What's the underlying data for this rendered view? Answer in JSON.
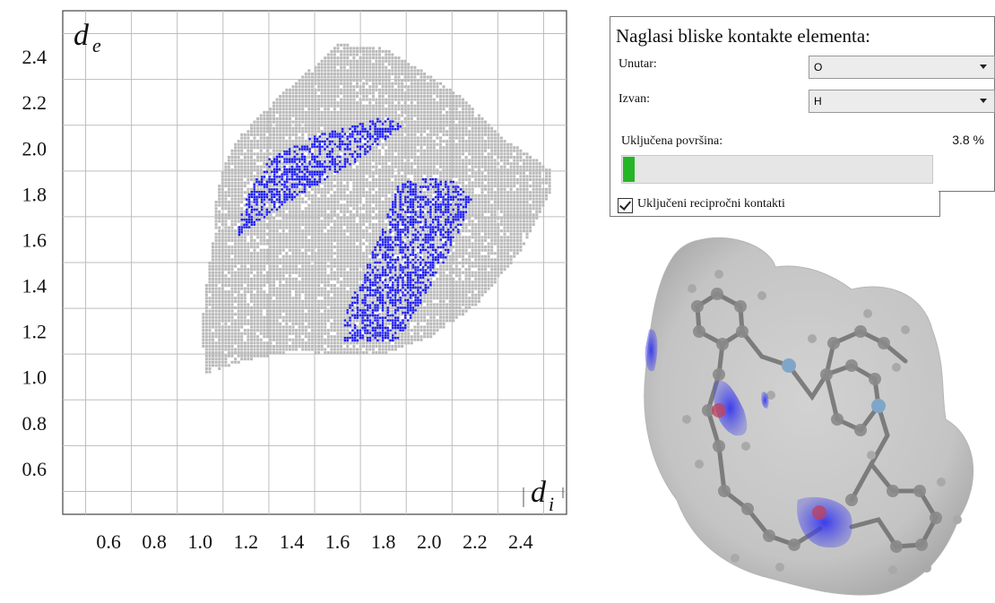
{
  "chart_data": {
    "type": "heatmap",
    "title": "",
    "xlabel": "d_i",
    "ylabel": "d_e",
    "x_ticks": [
      "0.6",
      "0.8",
      "1.0",
      "1.2",
      "1.4",
      "1.6",
      "1.8",
      "2.0",
      "2.2",
      "2.4"
    ],
    "y_ticks": [
      "2.4",
      "2.2",
      "2.0",
      "1.8",
      "1.6",
      "1.4",
      "1.2",
      "1.0",
      "0.8",
      "0.6"
    ],
    "xlim": [
      0.4,
      2.6
    ],
    "ylim": [
      0.4,
      2.6
    ],
    "grid": true,
    "regions": [
      {
        "name": "all contacts (grey)",
        "color": "#b9b9b9"
      },
      {
        "name": "O···H highlighted (blue)",
        "color": "#1a1aff"
      }
    ]
  },
  "axis": {
    "ylabel_main": "d",
    "ylabel_sub": "e",
    "xlabel_main": "d",
    "xlabel_sub": "i"
  },
  "panel": {
    "title": "Naglasi bliske kontakte elementa:",
    "inside_label": "Unutar:",
    "inside_value": "O",
    "outside_label": "Izvan:",
    "outside_value": "H",
    "surface_label": "Uključena površina:",
    "surface_percent": "3.8 %",
    "surface_fraction": 0.038,
    "reciprocal_label": "Uključeni recipročni kontakti",
    "reciprocal_checked": true
  },
  "colors": {
    "accent_green": "#26b526",
    "grey_points": "#b9b9b9",
    "blue_points": "#1a1aff"
  },
  "icons": {
    "dropdown": "chevron-down-icon",
    "checkbox": "checkbox-checked-icon"
  }
}
